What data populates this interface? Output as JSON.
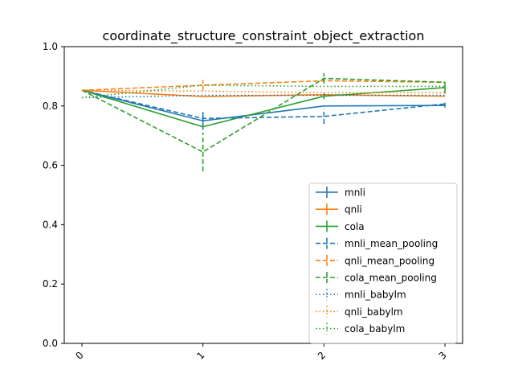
{
  "chart_data": {
    "type": "line",
    "title": "coordinate_structure_constraint_object_extraction",
    "xlabel": "",
    "ylabel": "",
    "x": [
      0,
      1,
      2,
      3
    ],
    "x_tick_labels": [
      "0",
      "1",
      "2",
      "3"
    ],
    "ylim": [
      0.0,
      1.0
    ],
    "y_ticks": [
      0.0,
      0.2,
      0.4,
      0.6,
      0.8,
      1.0
    ],
    "y_tick_labels": [
      "0.0",
      "0.2",
      "0.4",
      "0.6",
      "0.8",
      "1.0"
    ],
    "grid": false,
    "legend_position": "lower right",
    "series": [
      {
        "name": "mnli",
        "color": "#1f77b4",
        "style": "solid",
        "values": [
          0.853,
          0.75,
          0.8,
          0.802
        ],
        "errors": [
          0.0,
          0.03,
          0.0,
          0.0
        ]
      },
      {
        "name": "qnli",
        "color": "#ff7f0e",
        "style": "solid",
        "values": [
          0.853,
          0.832,
          0.838,
          0.833
        ],
        "errors": [
          0.0,
          0.0,
          0.0,
          0.0
        ]
      },
      {
        "name": "cola",
        "color": "#2ca02c",
        "style": "solid",
        "values": [
          0.853,
          0.73,
          0.833,
          0.862
        ],
        "errors": [
          0.0,
          0.0,
          0.01,
          0.02
        ]
      },
      {
        "name": "mnli_mean_pooling",
        "color": "#1f77b4",
        "style": "dashed",
        "values": [
          0.853,
          0.758,
          0.765,
          0.807
        ],
        "errors": [
          0.0,
          0.0,
          0.025,
          0.012
        ]
      },
      {
        "name": "qnli_mean_pooling",
        "color": "#ff7f0e",
        "style": "dashed",
        "values": [
          0.853,
          0.87,
          0.885,
          0.88
        ],
        "errors": [
          0.0,
          0.018,
          0.0,
          0.0
        ]
      },
      {
        "name": "cola_mean_pooling",
        "color": "#2ca02c",
        "style": "dashed",
        "values": [
          0.853,
          0.645,
          0.893,
          0.88
        ],
        "errors": [
          0.0,
          0.065,
          0.018,
          0.0
        ]
      },
      {
        "name": "mnli_babylm",
        "color": "#1f77b4",
        "style": "dotted",
        "values": [
          0.828,
          0.836,
          0.836,
          0.836
        ],
        "errors": [
          0.0,
          0.0,
          0.0,
          0.0
        ]
      },
      {
        "name": "qnli_babylm",
        "color": "#ff7f0e",
        "style": "dotted",
        "values": [
          0.853,
          0.85,
          0.845,
          0.845
        ],
        "errors": [
          0.0,
          0.0,
          0.0,
          0.0
        ]
      },
      {
        "name": "cola_babylm",
        "color": "#2ca02c",
        "style": "dotted",
        "values": [
          0.828,
          0.87,
          0.866,
          0.866
        ],
        "errors": [
          0.0,
          0.0,
          0.0,
          0.0
        ]
      }
    ]
  }
}
